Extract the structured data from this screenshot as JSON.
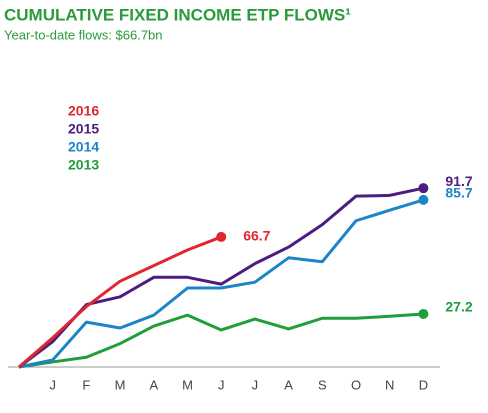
{
  "chart_data": {
    "type": "line",
    "title": "CUMULATIVE FIXED INCOME ETP FLOWS¹",
    "subtitle": "Year-to-date flows: $66.7bn",
    "categories": [
      null,
      "J",
      "F",
      "M",
      "A",
      "M",
      "J",
      "J",
      "A",
      "S",
      "O",
      "N",
      "D"
    ],
    "series": [
      {
        "name": "2016",
        "color": "#e1262f",
        "values": [
          0,
          15,
          31,
          44,
          52,
          60,
          66.7,
          null,
          null,
          null,
          null,
          null,
          null
        ]
      },
      {
        "name": "2015",
        "color": "#4c1d80",
        "values": [
          0,
          13,
          32,
          36,
          46,
          46,
          42.5,
          53,
          61.5,
          73,
          87.6,
          88,
          91.7
        ]
      },
      {
        "name": "2014",
        "color": "#1a86c8",
        "values": [
          0,
          3.6,
          23,
          20,
          26.6,
          40.5,
          40.5,
          43.5,
          56,
          54,
          75,
          80.4,
          85.7
        ]
      },
      {
        "name": "2013",
        "color": "#1f9e3c",
        "values": [
          0,
          2.6,
          5,
          12,
          21,
          26.6,
          19,
          24.6,
          19.5,
          25,
          25,
          26,
          27.2
        ]
      }
    ],
    "ylim": [
      0,
      100
    ]
  }
}
